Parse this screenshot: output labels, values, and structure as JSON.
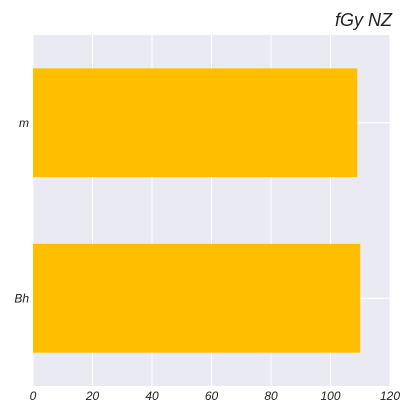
{
  "chart_data": {
    "type": "bar",
    "orientation": "horizontal",
    "title": "fGy NZ",
    "xlabel": "",
    "ylabel": "",
    "categories": [
      "m",
      "Bh"
    ],
    "values": [
      109,
      110
    ],
    "xlim": [
      0,
      120
    ],
    "x_ticks": [
      0,
      20,
      40,
      60,
      80,
      100,
      120
    ],
    "grid": true,
    "legend": "none",
    "colors": {
      "bar": "#FFBF00",
      "plot_background": "#EAEAF2",
      "grid": "#FFFFFF"
    }
  }
}
